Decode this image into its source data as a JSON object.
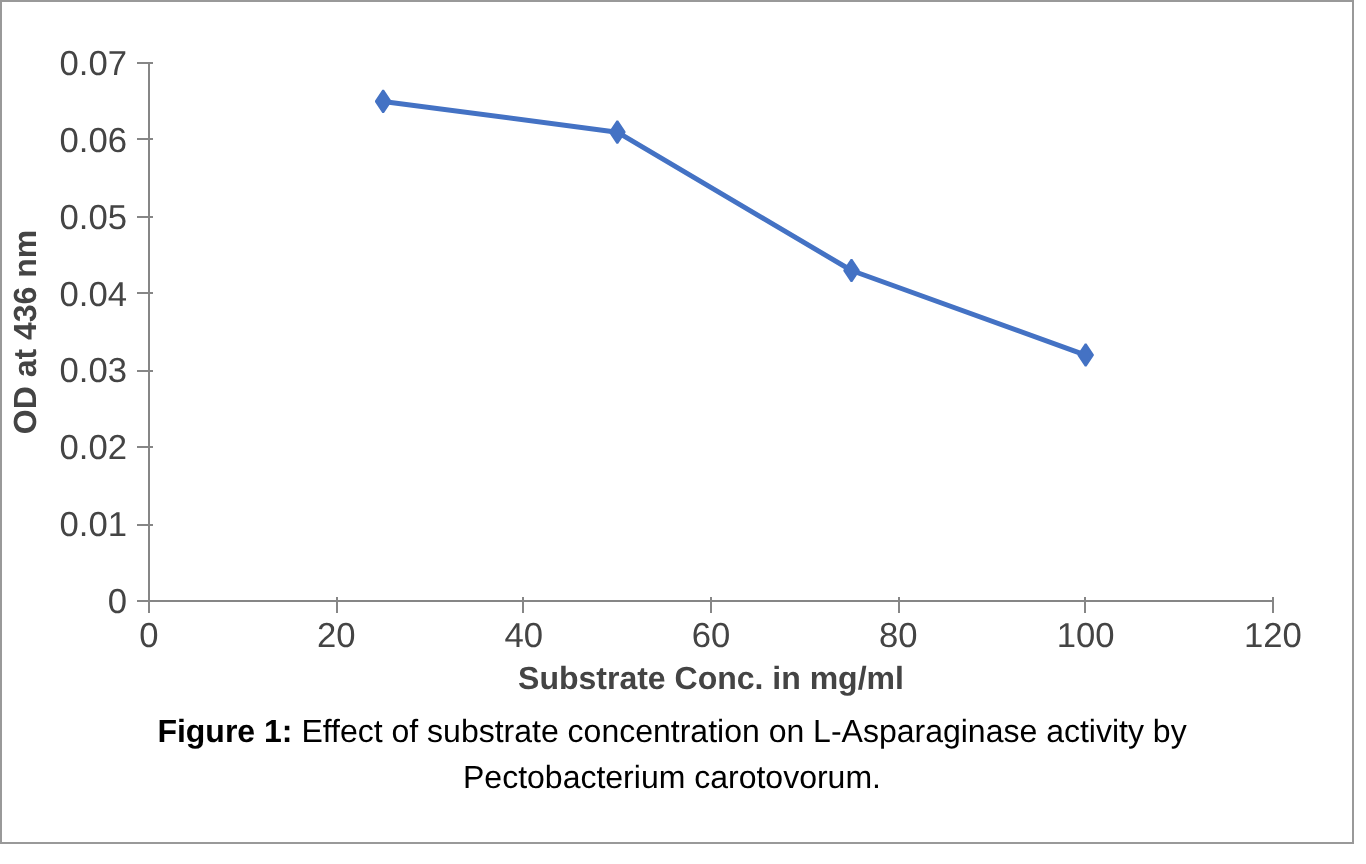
{
  "chart_data": {
    "type": "line",
    "xlabel": "Substrate Conc. in mg/ml",
    "ylabel": "OD at 436 nm",
    "x": [
      25,
      50,
      75,
      100
    ],
    "series": [
      {
        "color": "#4472c4",
        "values": [
          0.065,
          0.061,
          0.043,
          0.032
        ]
      }
    ],
    "xlim": [
      0,
      120
    ],
    "xticks": [
      0,
      20,
      40,
      60,
      80,
      100,
      120
    ],
    "ylim": [
      0,
      0.07
    ],
    "yticks": [
      0,
      0.01,
      0.02,
      0.03,
      0.04,
      0.05,
      0.06,
      0.07
    ],
    "marker": "diamond",
    "line_style": "solid",
    "grid": false,
    "annotations": [
      "Figure 1:",
      "Effect of substrate concentration on L-Asparaginase activity by Pectobacterium carotovorum."
    ]
  }
}
